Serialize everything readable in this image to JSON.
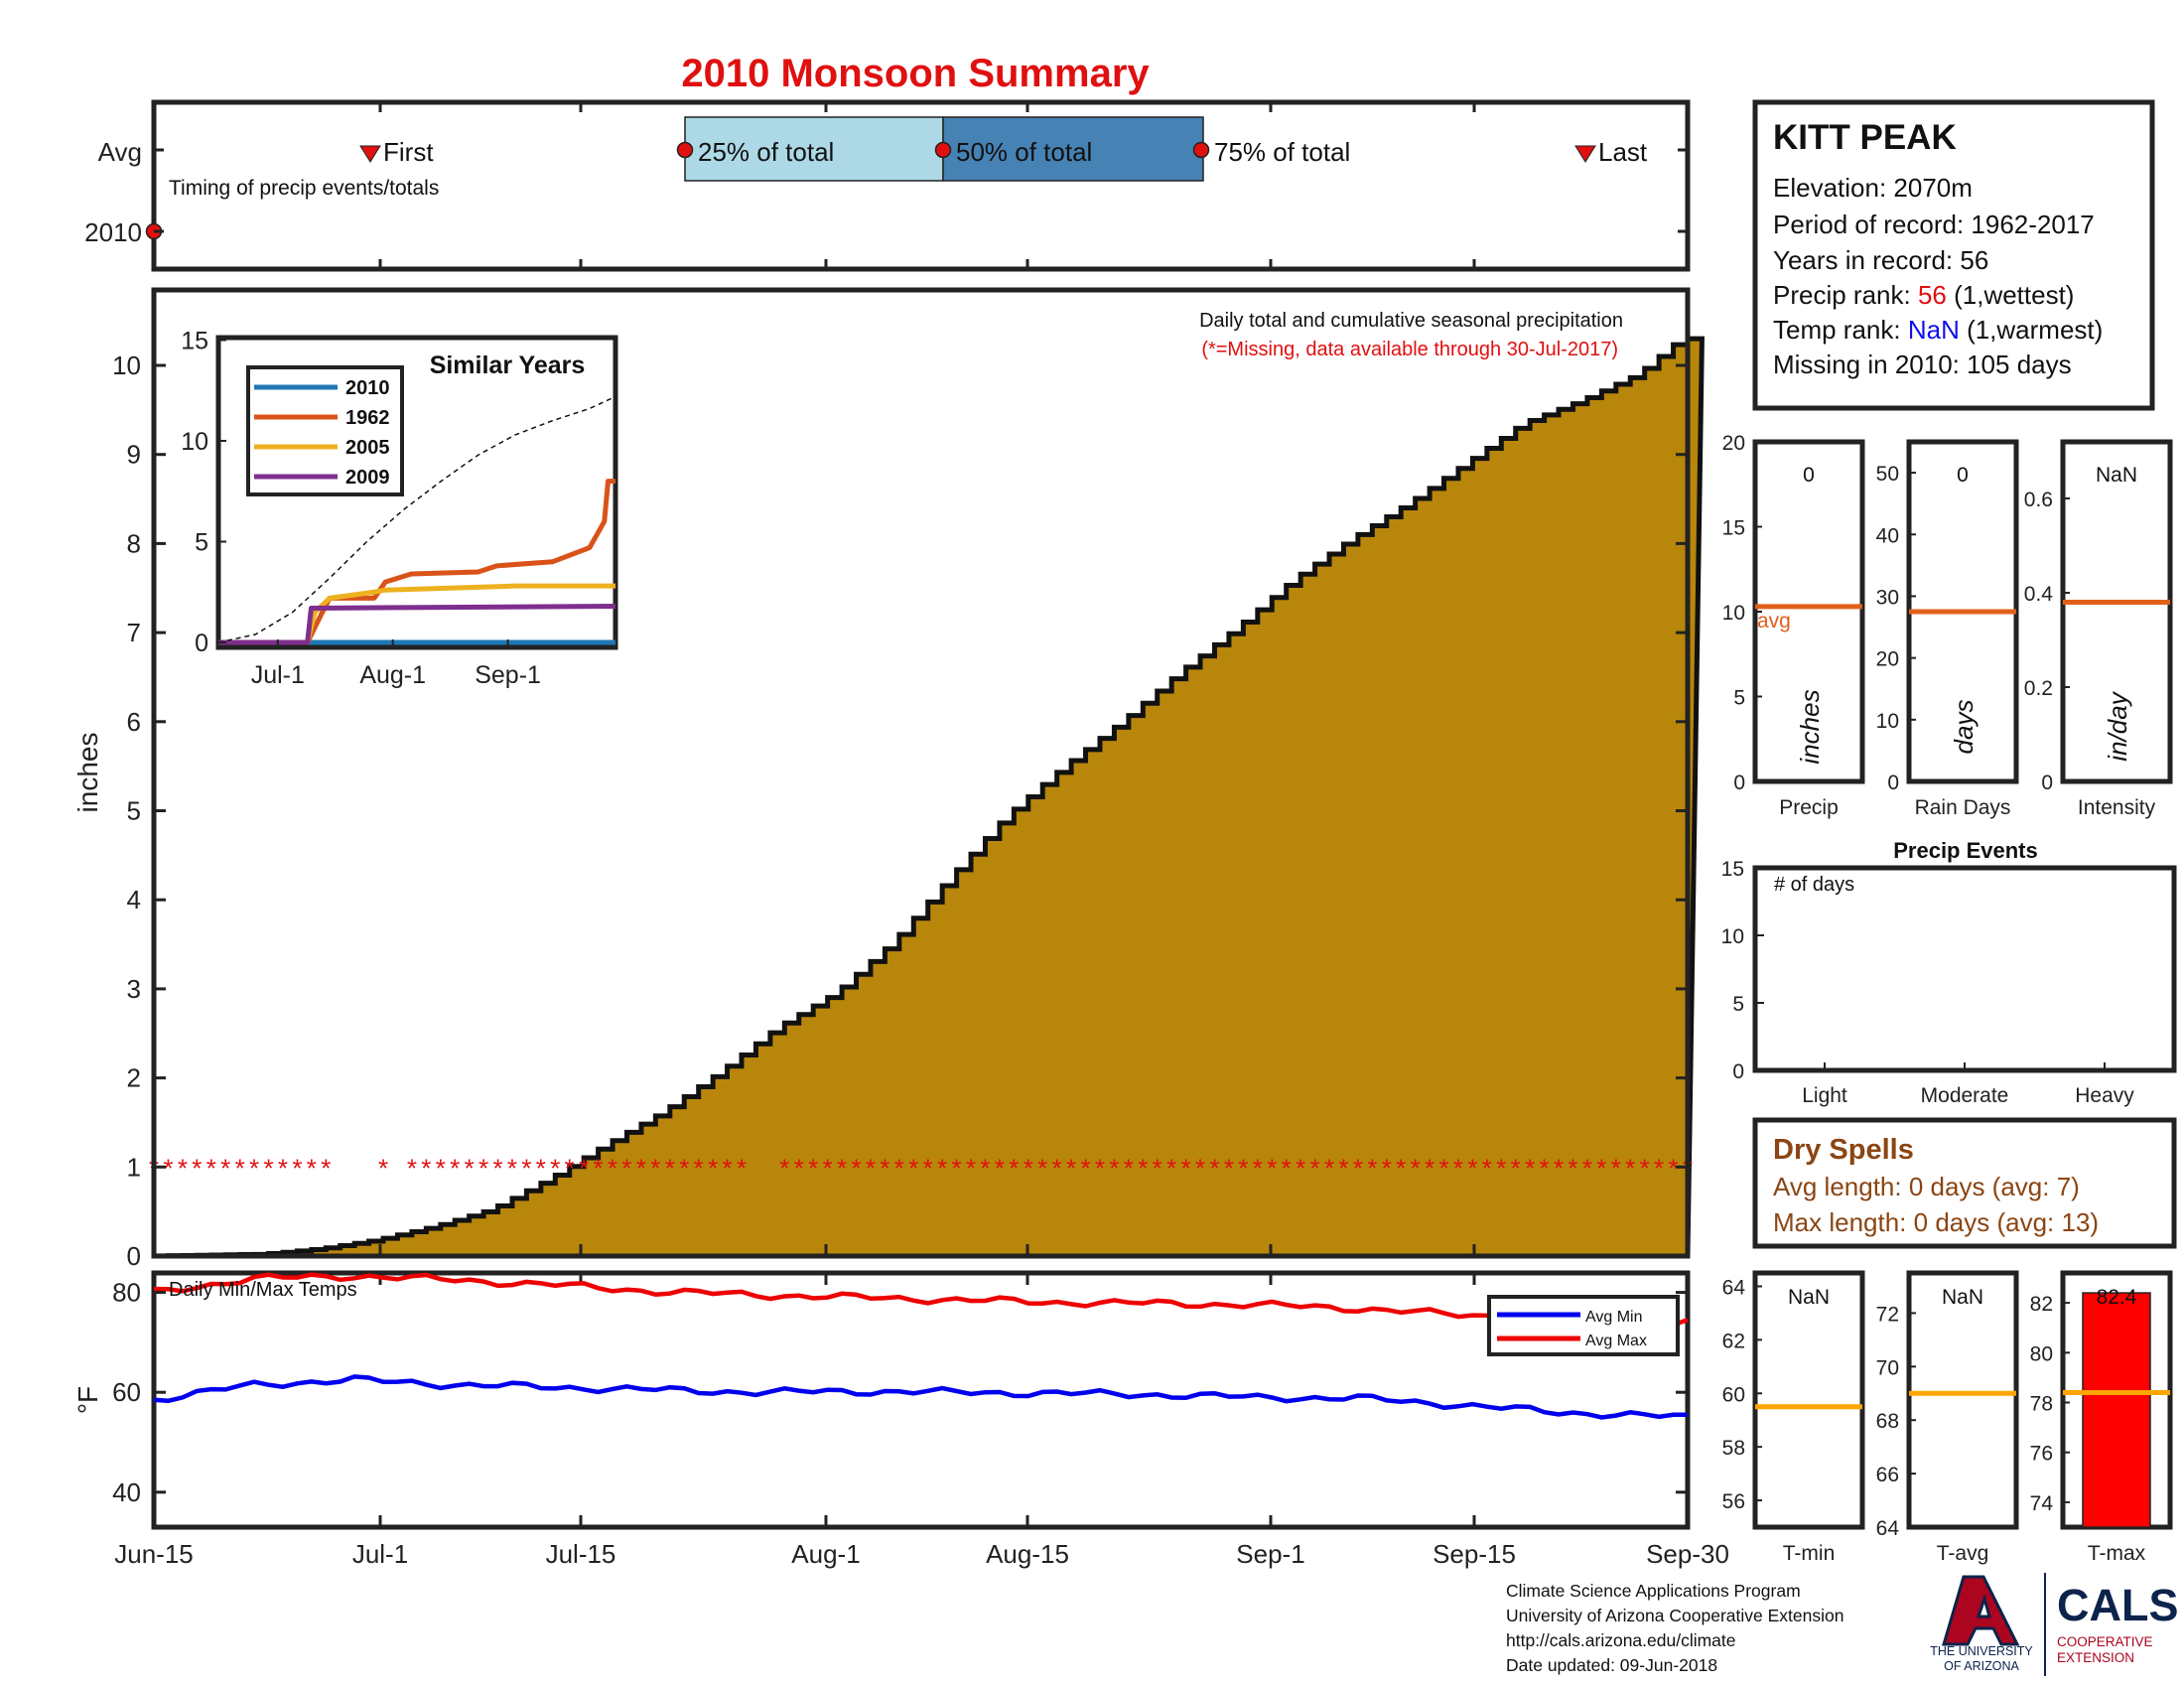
{
  "title": "2010 Monsoon Summary",
  "colors": {
    "title": "#e01010",
    "cumulative_fill": "#b8860b",
    "q25_box": "#add8e6",
    "q50_box": "#4682b4",
    "marker_red": "#e01010",
    "avg_line": "#e0601a",
    "temp_avg_line": "#ffa500",
    "min_line": "#0000ee",
    "max_line": "#ee0000",
    "dry_spell_text": "#8b4513",
    "similar_2010": "#1f77b4",
    "similar_1962": "#d95319",
    "similar_2005": "#edb120",
    "similar_2009": "#7e2f8e",
    "ua_red": "#ab0520",
    "ua_navy": "#0c234b"
  },
  "timing": {
    "ylabels": [
      "Avg",
      "2010"
    ],
    "note": "Timing of precip events/totals",
    "first": "First",
    "last": "Last",
    "q25": "25% of total",
    "q50": "50% of total",
    "q75": "75% of total"
  },
  "station": {
    "name": "KITT PEAK",
    "elevation": "Elevation: 2070m",
    "period": "Period of record: 1962-2017",
    "years": "Years in record: 56",
    "precip_rank_prefix": "Precip rank: ",
    "precip_rank_value": "56",
    "precip_rank_suffix": " (1,wettest)",
    "temp_rank_prefix": "Temp rank: ",
    "temp_rank_value": "NaN",
    "temp_rank_suffix": " (1,warmest)",
    "missing": "Missing in 2010: 105 days"
  },
  "main": {
    "annotation_line1": "Daily total and cumulative seasonal precipitation",
    "annotation_line2": "(*=Missing, data available through 30-Jul-2017)",
    "ylabel": "inches",
    "yticks": [
      0,
      1,
      2,
      3,
      4,
      5,
      6,
      7,
      8,
      9,
      10
    ],
    "xticks": [
      "Jun-15",
      "Jul-1",
      "Jul-15",
      "Aug-1",
      "Aug-15",
      "Sep-1",
      "Sep-15",
      "Sep-30"
    ],
    "missing_marker": "*"
  },
  "inset": {
    "title": "Similar Years",
    "yticks": [
      0,
      5,
      10,
      15
    ],
    "xticks": [
      "Jul-1",
      "Aug-1",
      "Sep-1"
    ],
    "legend": [
      "2010",
      "1962",
      "2005",
      "2009"
    ]
  },
  "bars": [
    {
      "label": "Precip",
      "unit": "inches",
      "value_text": "0",
      "yticks": [
        0,
        5,
        10,
        15,
        20
      ],
      "avg_label": "avg",
      "avg": 10.3
    },
    {
      "label": "Rain Days",
      "unit": "days",
      "value_text": "0",
      "yticks": [
        0,
        10,
        20,
        30,
        40,
        50
      ],
      "avg": 27.5
    },
    {
      "label": "Intensity",
      "unit": "in/day",
      "value_text": "NaN",
      "yticks": [
        "0",
        "0.2",
        "0.4",
        "0.6"
      ],
      "avg": 0.38
    }
  ],
  "events": {
    "title": "Precip Events",
    "note": "# of days",
    "yticks": [
      0,
      5,
      10,
      15
    ],
    "categories": [
      "Light",
      "Moderate",
      "Heavy"
    ]
  },
  "dry_spells": {
    "title": "Dry Spells",
    "avg_length": "Avg length: 0 days (avg: 7)",
    "max_length": "Max length: 0 days (avg: 13)"
  },
  "temps": {
    "label": "Daily Min/Max Temps",
    "ylabel": "°F",
    "yticks": [
      40,
      60,
      80
    ],
    "legend": [
      "Avg Min",
      "Avg Max"
    ]
  },
  "temp_bars": [
    {
      "label": "T-min",
      "value_text": "NaN",
      "yticks": [
        56,
        58,
        60,
        62,
        64
      ],
      "avg": 59.5
    },
    {
      "label": "T-avg",
      "value_text": "NaN",
      "yticks": [
        64,
        66,
        68,
        70,
        72
      ],
      "avg": 69.0
    },
    {
      "label": "T-max",
      "value_text": "82.4",
      "yticks": [
        74,
        76,
        78,
        80,
        82
      ],
      "avg": 78.4,
      "value": 82.4
    }
  ],
  "footer": {
    "line1": "Climate Science Applications Program",
    "line2": "University of Arizona Cooperative Extension",
    "line3": "http://cals.arizona.edu/climate",
    "line4": " Date updated: 09-Jun-2018"
  },
  "logos": {
    "ua_line1": "THE UNIVERSITY",
    "ua_line2": "OF ARIZONA",
    "cals": "CALS",
    "cals_sub1": "COOPERATIVE",
    "cals_sub2": "EXTENSION"
  },
  "chart_data": {
    "type": "area",
    "title": "2010 Monsoon Summary",
    "ylabel": "inches",
    "ylim": [
      0,
      10.5
    ],
    "x_range": [
      "Jun-15",
      "Sep-30"
    ],
    "cumulative_avg_precip": {
      "x_day": [
        0,
        8,
        12,
        16,
        20,
        24,
        28,
        32,
        36,
        40,
        44,
        48,
        52,
        56,
        60,
        64,
        68,
        72,
        76,
        80,
        84,
        88,
        92,
        96,
        100,
        104,
        107
      ],
      "values": [
        0,
        0.02,
        0.08,
        0.18,
        0.33,
        0.52,
        0.86,
        1.25,
        1.62,
        2.07,
        2.57,
        2.95,
        3.52,
        4.25,
        4.95,
        5.5,
        6.0,
        6.55,
        7.05,
        7.6,
        8.05,
        8.45,
        8.9,
        9.35,
        9.6,
        9.9,
        10.3
      ]
    },
    "missing_marker_y": 1,
    "missing_gaps_day": [
      [
        13,
        15
      ],
      [
        17,
        17.5
      ],
      [
        42,
        43.5
      ]
    ],
    "temps": {
      "x_day": [
        0,
        7,
        14,
        21,
        28,
        35,
        42,
        49,
        56,
        63,
        70,
        77,
        84,
        91,
        98,
        105,
        107
      ],
      "avg_max": [
        80.0,
        82.8,
        83.3,
        82.5,
        81.5,
        80.2,
        79.5,
        79.0,
        78.5,
        78.0,
        77.8,
        77.5,
        76.8,
        75.5,
        74.8,
        73.8,
        74.0
      ],
      "avg_min": [
        58.5,
        61.5,
        62.5,
        61.5,
        61.0,
        60.5,
        60.0,
        60.2,
        60.0,
        59.8,
        59.5,
        59.0,
        58.8,
        57.5,
        56.0,
        55.2,
        55.0
      ]
    },
    "similar_years": {
      "x_month_ticks": [
        "Jul-1",
        "Aug-1",
        "Sep-1"
      ],
      "series": [
        {
          "name": "2010",
          "x_day": [
            0,
            107
          ],
          "values": [
            0,
            0
          ]
        },
        {
          "name": "1962",
          "x_day": [
            0,
            24,
            28,
            30,
            42,
            45,
            52,
            70,
            75,
            90,
            100,
            104,
            105,
            107
          ],
          "values": [
            0,
            0,
            1.5,
            2.2,
            2.2,
            3.0,
            3.4,
            3.5,
            3.8,
            4.0,
            4.7,
            6.0,
            8.0,
            8.0
          ],
          "note": "approximate"
        },
        {
          "name": "2005",
          "x_day": [
            0,
            24,
            26,
            30,
            42,
            45,
            80,
            107
          ],
          "values": [
            0,
            0,
            1.5,
            2.2,
            2.5,
            2.6,
            2.8,
            2.8
          ]
        },
        {
          "name": "2009",
          "x_day": [
            0,
            24,
            25,
            107
          ],
          "values": [
            0,
            0,
            1.7,
            1.8
          ]
        },
        {
          "name": "avg",
          "x_day": [
            0,
            10,
            20,
            30,
            40,
            50,
            60,
            70,
            80,
            90,
            100,
            107
          ],
          "values": [
            0,
            0.4,
            1.5,
            3.2,
            5.0,
            6.6,
            8.0,
            9.3,
            10.3,
            11.0,
            11.6,
            12.2
          ]
        }
      ]
    },
    "station_stats": {
      "precip": 0,
      "precip_avg": 10.3,
      "rain_days": 0,
      "rain_days_avg": 27.5,
      "intensity_avg": 0.38,
      "t_max": 82.4,
      "t_max_avg": 78.4,
      "t_min_avg": 59.5,
      "t_avg_avg": 69.0
    }
  }
}
